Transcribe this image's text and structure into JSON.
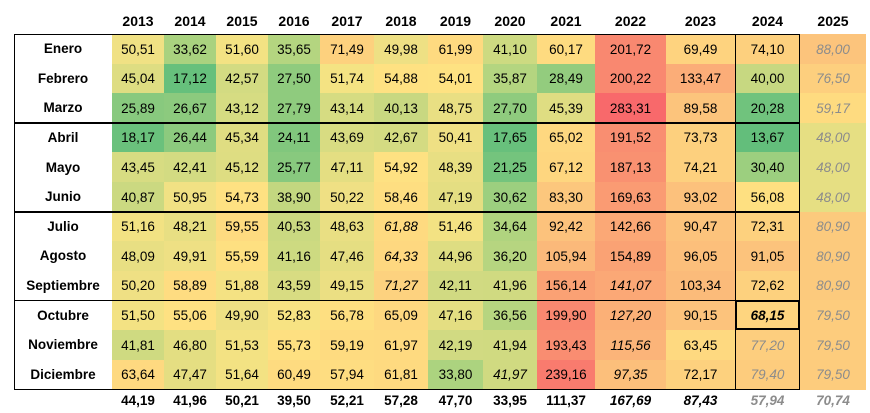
{
  "years": [
    "2013",
    "2014",
    "2015",
    "2016",
    "2017",
    "2018",
    "2019",
    "2020",
    "2021",
    "2022",
    "2023",
    "2024",
    "2025"
  ],
  "rows": [
    {
      "month": "Enero",
      "cells": [
        {
          "v": "50,51",
          "c": "#f0e184"
        },
        {
          "v": "33,62",
          "c": "#a9d27f"
        },
        {
          "v": "51,60",
          "c": "#f3e283"
        },
        {
          "v": "35,65",
          "c": "#b4d580"
        },
        {
          "v": "71,49",
          "c": "#fdd17e"
        },
        {
          "v": "49,98",
          "c": "#eee084"
        },
        {
          "v": "61,99",
          "c": "#feda80"
        },
        {
          "v": "41,10",
          "c": "#cdda81"
        },
        {
          "v": "60,17",
          "c": "#fedb80"
        },
        {
          "v": "201,72",
          "c": "#f98870"
        },
        {
          "v": "69,49",
          "c": "#fed37f"
        },
        {
          "v": "74,10",
          "c": "#fdd07e"
        },
        {
          "v": "88,00",
          "c": "#fcc47c",
          "i": true,
          "g": true
        }
      ]
    },
    {
      "month": "Febrero",
      "cells": [
        {
          "v": "45,04",
          "c": "#dedd82"
        },
        {
          "v": "17,12",
          "c": "#66c07c"
        },
        {
          "v": "42,57",
          "c": "#d3db82"
        },
        {
          "v": "27,50",
          "c": "#8fcb7e"
        },
        {
          "v": "51,74",
          "c": "#f4e383"
        },
        {
          "v": "54,88",
          "c": "#fee182"
        },
        {
          "v": "54,01",
          "c": "#fee282"
        },
        {
          "v": "35,87",
          "c": "#b4d580"
        },
        {
          "v": "28,49",
          "c": "#93cc7e"
        },
        {
          "v": "200,22",
          "c": "#f98870"
        },
        {
          "v": "133,47",
          "c": "#fbad78"
        },
        {
          "v": "40,00",
          "c": "#c7d881"
        },
        {
          "v": "76,50",
          "c": "#fdcf7e",
          "i": true,
          "g": true
        }
      ]
    },
    {
      "month": "Marzo",
      "cells": [
        {
          "v": "25,89",
          "c": "#88c97e"
        },
        {
          "v": "26,67",
          "c": "#8cca7e"
        },
        {
          "v": "43,12",
          "c": "#d6dc82"
        },
        {
          "v": "27,79",
          "c": "#8fcb7e"
        },
        {
          "v": "43,14",
          "c": "#d6dc82"
        },
        {
          "v": "40,13",
          "c": "#c8d881"
        },
        {
          "v": "48,75",
          "c": "#e9df83"
        },
        {
          "v": "27,70",
          "c": "#8fcb7e"
        },
        {
          "v": "45,39",
          "c": "#dfdd82"
        },
        {
          "v": "283,31",
          "c": "#f8696b"
        },
        {
          "v": "89,58",
          "c": "#fcc47c"
        },
        {
          "v": "20,28",
          "c": "#70c37d"
        },
        {
          "v": "59,17",
          "c": "#fedb80",
          "i": true,
          "g": true
        }
      ]
    },
    {
      "month": "Abril",
      "cells": [
        {
          "v": "18,17",
          "c": "#6ac17c"
        },
        {
          "v": "26,44",
          "c": "#8cca7e"
        },
        {
          "v": "45,34",
          "c": "#dfdd82"
        },
        {
          "v": "24,11",
          "c": "#81c77d"
        },
        {
          "v": "43,69",
          "c": "#d8dc82"
        },
        {
          "v": "42,67",
          "c": "#d4db82"
        },
        {
          "v": "50,41",
          "c": "#efe084"
        },
        {
          "v": "17,65",
          "c": "#68c07c"
        },
        {
          "v": "65,02",
          "c": "#fed880"
        },
        {
          "v": "191,52",
          "c": "#f98e71"
        },
        {
          "v": "73,73",
          "c": "#fdd07e"
        },
        {
          "v": "13,67",
          "c": "#63be7b"
        },
        {
          "v": "48,00",
          "c": "#e6df83",
          "i": true,
          "g": true
        }
      ]
    },
    {
      "month": "Mayo",
      "cells": [
        {
          "v": "43,45",
          "c": "#d7dc82"
        },
        {
          "v": "42,41",
          "c": "#d3db82"
        },
        {
          "v": "45,12",
          "c": "#dedd82"
        },
        {
          "v": "25,77",
          "c": "#88c97e"
        },
        {
          "v": "47,11",
          "c": "#e4de82"
        },
        {
          "v": "54,92",
          "c": "#fee182"
        },
        {
          "v": "48,39",
          "c": "#e8df83"
        },
        {
          "v": "21,25",
          "c": "#74c47d"
        },
        {
          "v": "67,12",
          "c": "#fed67f"
        },
        {
          "v": "187,13",
          "c": "#f99171"
        },
        {
          "v": "74,21",
          "c": "#fdd07e"
        },
        {
          "v": "30,40",
          "c": "#9ccf7f"
        },
        {
          "v": "48,00",
          "c": "#e6df83",
          "i": true,
          "g": true
        }
      ]
    },
    {
      "month": "Junio",
      "cells": [
        {
          "v": "40,87",
          "c": "#cbd981"
        },
        {
          "v": "50,95",
          "c": "#f1e184"
        },
        {
          "v": "54,73",
          "c": "#fee182"
        },
        {
          "v": "38,90",
          "c": "#c3d780"
        },
        {
          "v": "50,22",
          "c": "#efe084"
        },
        {
          "v": "58,46",
          "c": "#fede81"
        },
        {
          "v": "47,19",
          "c": "#e4de82"
        },
        {
          "v": "30,62",
          "c": "#9ccf7f"
        },
        {
          "v": "83,30",
          "c": "#fcc77d"
        },
        {
          "v": "169,63",
          "c": "#fa9b73"
        },
        {
          "v": "93,02",
          "c": "#fcc17c"
        },
        {
          "v": "56,08",
          "c": "#fee081"
        },
        {
          "v": "48,00",
          "c": "#e6df83",
          "i": true,
          "g": true
        }
      ]
    },
    {
      "month": "Julio",
      "cells": [
        {
          "v": "51,16",
          "c": "#f2e283"
        },
        {
          "v": "48,21",
          "c": "#e8df83"
        },
        {
          "v": "59,55",
          "c": "#fedb80"
        },
        {
          "v": "40,53",
          "c": "#cad981"
        },
        {
          "v": "48,63",
          "c": "#e9df83"
        },
        {
          "v": "61,88",
          "c": "#feda80",
          "i": true
        },
        {
          "v": "51,46",
          "c": "#f3e283"
        },
        {
          "v": "34,64",
          "c": "#b0d47f"
        },
        {
          "v": "92,42",
          "c": "#fcc27c"
        },
        {
          "v": "142,66",
          "c": "#fba876"
        },
        {
          "v": "90,47",
          "c": "#fcc37c"
        },
        {
          "v": "72,31",
          "c": "#fdd17e"
        },
        {
          "v": "80,90",
          "c": "#fcca7d",
          "i": true,
          "g": true
        }
      ]
    },
    {
      "month": "Agosto",
      "cells": [
        {
          "v": "48,09",
          "c": "#e8df83"
        },
        {
          "v": "49,91",
          "c": "#eee084"
        },
        {
          "v": "55,59",
          "c": "#fee081"
        },
        {
          "v": "41,16",
          "c": "#cdda81"
        },
        {
          "v": "47,46",
          "c": "#e5de82"
        },
        {
          "v": "64,33",
          "c": "#fed880",
          "i": true
        },
        {
          "v": "44,96",
          "c": "#dedd82"
        },
        {
          "v": "36,20",
          "c": "#b6d580"
        },
        {
          "v": "105,94",
          "c": "#fbb97a"
        },
        {
          "v": "154,89",
          "c": "#faa274"
        },
        {
          "v": "96,05",
          "c": "#fcbf7b"
        },
        {
          "v": "91,05",
          "c": "#fcc37c"
        },
        {
          "v": "80,90",
          "c": "#fcca7d",
          "i": true,
          "g": true
        }
      ]
    },
    {
      "month": "Septiembre",
      "cells": [
        {
          "v": "50,20",
          "c": "#efe084"
        },
        {
          "v": "58,89",
          "c": "#fedc81"
        },
        {
          "v": "51,88",
          "c": "#f4e283"
        },
        {
          "v": "43,59",
          "c": "#d8dc82"
        },
        {
          "v": "49,15",
          "c": "#ebdf83"
        },
        {
          "v": "71,27",
          "c": "#fdd27f",
          "i": true
        },
        {
          "v": "42,11",
          "c": "#d1da82"
        },
        {
          "v": "41,96",
          "c": "#d0da81"
        },
        {
          "v": "156,14",
          "c": "#faa174"
        },
        {
          "v": "141,07",
          "c": "#fba876",
          "i": true
        },
        {
          "v": "103,34",
          "c": "#fbbb7a"
        },
        {
          "v": "72,62",
          "c": "#fdd17e"
        },
        {
          "v": "80,90",
          "c": "#fcca7d",
          "i": true,
          "g": true
        }
      ]
    },
    {
      "month": "Octubre",
      "cells": [
        {
          "v": "51,50",
          "c": "#f3e283"
        },
        {
          "v": "55,06",
          "c": "#fee182"
        },
        {
          "v": "49,90",
          "c": "#eee084"
        },
        {
          "v": "52,83",
          "c": "#f7e383"
        },
        {
          "v": "56,78",
          "c": "#fedf81"
        },
        {
          "v": "65,09",
          "c": "#fed880"
        },
        {
          "v": "47,16",
          "c": "#e4de82"
        },
        {
          "v": "36,56",
          "c": "#b7d580"
        },
        {
          "v": "199,90",
          "c": "#f98870"
        },
        {
          "v": "127,20",
          "c": "#fbb077",
          "i": true
        },
        {
          "v": "90,15",
          "c": "#fcc37c"
        },
        {
          "v": "68,15",
          "c": "#fed57f",
          "i": true,
          "b": true
        },
        {
          "v": "79,50",
          "c": "#fdcc7d",
          "i": true,
          "g": true
        }
      ]
    },
    {
      "month": "Noviembre",
      "cells": [
        {
          "v": "41,81",
          "c": "#cfda81"
        },
        {
          "v": "46,80",
          "c": "#e3de82"
        },
        {
          "v": "51,53",
          "c": "#f3e283"
        },
        {
          "v": "55,73",
          "c": "#fee081"
        },
        {
          "v": "59,19",
          "c": "#fedb80"
        },
        {
          "v": "61,97",
          "c": "#feda80"
        },
        {
          "v": "42,19",
          "c": "#d1da82"
        },
        {
          "v": "41,94",
          "c": "#d0da81"
        },
        {
          "v": "193,43",
          "c": "#f98d71"
        },
        {
          "v": "115,56",
          "c": "#fbb479",
          "i": true
        },
        {
          "v": "63,45",
          "c": "#fed980"
        },
        {
          "v": "77,20",
          "c": "#fdce7e",
          "i": true,
          "g": true
        },
        {
          "v": "79,50",
          "c": "#fdcc7d",
          "i": true,
          "g": true
        }
      ]
    },
    {
      "month": "Diciembre",
      "cells": [
        {
          "v": "63,64",
          "c": "#fed980"
        },
        {
          "v": "47,47",
          "c": "#e5de82"
        },
        {
          "v": "51,64",
          "c": "#f3e283"
        },
        {
          "v": "60,49",
          "c": "#fedb80"
        },
        {
          "v": "57,94",
          "c": "#fedd81"
        },
        {
          "v": "61,81",
          "c": "#feda80"
        },
        {
          "v": "33,80",
          "c": "#acd37f"
        },
        {
          "v": "41,97",
          "c": "#d0da81",
          "i": true
        },
        {
          "v": "239,16",
          "c": "#f97b6e"
        },
        {
          "v": "97,35",
          "c": "#fcbf7b",
          "i": true
        },
        {
          "v": "72,17",
          "c": "#fdd17e"
        },
        {
          "v": "79,40",
          "c": "#fdcc7d",
          "i": true,
          "g": true
        },
        {
          "v": "79,50",
          "c": "#fdcc7d",
          "i": true,
          "g": true
        }
      ]
    }
  ],
  "totals": [
    {
      "v": "44,19"
    },
    {
      "v": "41,96"
    },
    {
      "v": "50,21"
    },
    {
      "v": "39,50"
    },
    {
      "v": "52,21"
    },
    {
      "v": "57,28"
    },
    {
      "v": "47,70"
    },
    {
      "v": "33,95"
    },
    {
      "v": "111,37"
    },
    {
      "v": "167,69",
      "i": true
    },
    {
      "v": "87,43",
      "i": true
    },
    {
      "v": "57,94",
      "i": true,
      "g": true
    },
    {
      "v": "70,74",
      "i": true,
      "g": true
    }
  ]
}
